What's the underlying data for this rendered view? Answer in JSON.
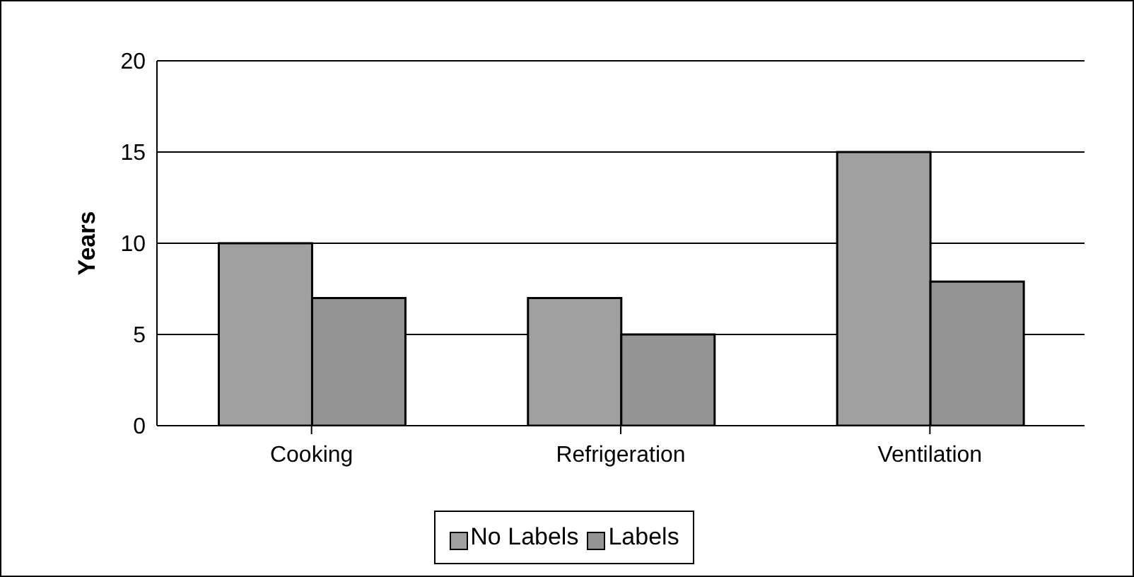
{
  "chart_data": {
    "type": "bar",
    "ylabel": "Years",
    "categories": [
      "Cooking",
      "Refrigeration",
      "Ventilation"
    ],
    "series": [
      {
        "name": "No Labels",
        "color": "#a0a0a0",
        "values": [
          10,
          7,
          15
        ]
      },
      {
        "name": "Labels",
        "color": "#949494",
        "values": [
          7,
          5,
          7.9
        ]
      }
    ],
    "ylim": [
      0,
      20
    ],
    "yticks": [
      0,
      5,
      10,
      15,
      20
    ],
    "grid": "y",
    "legend": "bottom"
  }
}
